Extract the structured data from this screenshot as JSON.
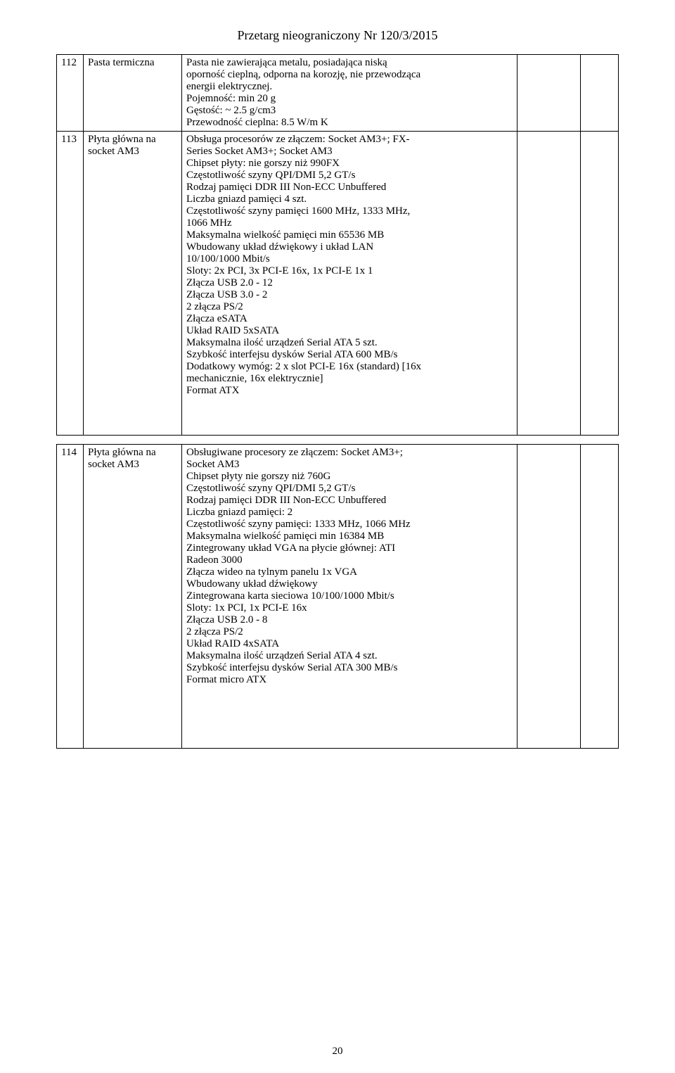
{
  "header": {
    "title": "Przetarg nieograniczony Nr 120/3/2015"
  },
  "page_number": "20",
  "rows": [
    {
      "num": "112",
      "name": "Pasta termiczna",
      "desc": [
        "Pasta nie zawierająca metalu, posiadająca niską",
        "oporność cieplną, odporna na korozję, nie przewodząca",
        "energii elektrycznej.",
        "Pojemność: min 20 g",
        "Gęstość: ~ 2.5 g/cm3",
        "Przewodność cieplna: 8.5 W/m K"
      ]
    },
    {
      "num": "113",
      "name_lines": [
        "Płyta główna na",
        "socket AM3"
      ],
      "desc": [
        "Obsługa procesorów ze złączem: Socket AM3+; FX-",
        "Series Socket AM3+; Socket AM3",
        "Chipset płyty: nie gorszy niż 990FX",
        "Częstotliwość szyny QPI/DMI 5,2 GT/s",
        "Rodzaj pamięci DDR III Non-ECC Unbuffered",
        "Liczba gniazd pamięci 4 szt.",
        "Częstotliwość szyny pamięci 1600 MHz, 1333 MHz,",
        "1066 MHz",
        "Maksymalna wielkość pamięci min 65536 MB",
        "Wbudowany układ dźwiękowy i układ LAN",
        "10/100/1000 Mbit/s",
        "Sloty: 2x PCI, 3x PCI-E 16x, 1x PCI-E 1x 1",
        "Złącza USB 2.0 - 12",
        "Złącza USB 3.0 - 2",
        "2 złącza PS/2",
        "Złącza eSATA",
        "Układ RAID 5xSATA",
        "Maksymalna ilość urządzeń Serial ATA 5 szt.",
        "Szybkość interfejsu dysków Serial ATA 600 MB/s",
        "Dodatkowy wymóg: 2 x slot PCI-E 16x (standard) [16x",
        "mechanicznie, 16x elektrycznie]",
        "Format ATX"
      ],
      "trailing_blank": true
    },
    {
      "num": "114",
      "name_lines": [
        "Płyta główna na",
        "socket AM3"
      ],
      "desc": [
        "Obsługiwane procesory ze złączem: Socket AM3+;",
        "Socket AM3",
        "Chipset płyty nie gorszy niż 760G",
        "Częstotliwość szyny QPI/DMI 5,2 GT/s",
        "Rodzaj pamięci DDR III Non-ECC Unbuffered",
        "Liczba gniazd pamięci: 2",
        "Częstotliwość szyny pamięci: 1333 MHz, 1066 MHz",
        "Maksymalna wielkość pamięci min 16384 MB",
        "Zintegrowany układ VGA na płycie głównej: ATI",
        "Radeon 3000",
        "Złącza wideo na tylnym panelu 1x VGA",
        "Wbudowany układ dźwiękowy",
        "Zintegrowana karta sieciowa 10/100/1000 Mbit/s",
        "Sloty: 1x PCI, 1x PCI-E 16x",
        "Złącza USB 2.0  - 8",
        "2 złącza PS/2",
        "Układ RAID 4xSATA",
        "Maksymalna ilość urządzeń Serial ATA 4 szt.",
        "Szybkość interfejsu dysków Serial ATA 300 MB/s",
        "Format micro ATX"
      ],
      "trailing_blank": true,
      "gap_before": true
    }
  ]
}
